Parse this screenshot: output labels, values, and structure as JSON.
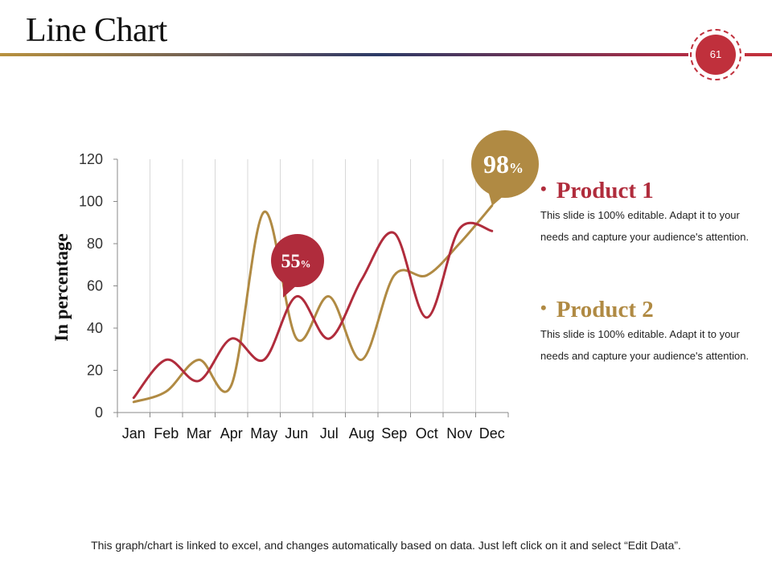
{
  "slide": {
    "title": "Line Chart",
    "page_number": "61",
    "footer": "This graph/chart is linked to excel, and changes automatically based on data. Just left click on it and select “Edit Data”."
  },
  "colors": {
    "product1": "#b02c3c",
    "product2": "#b08a43",
    "accent_red": "#c0303c",
    "grid": "#d8d8d8",
    "axis": "#888888"
  },
  "legend": [
    {
      "name": "Product 1",
      "description": "This slide is 100% editable. Adapt it to your needs and capture your audience's attention."
    },
    {
      "name": "Product 2",
      "description": "This slide is 100% editable. Adapt it to your needs and capture your audience's attention."
    }
  ],
  "chart_data": {
    "type": "line",
    "title": "",
    "xlabel": "",
    "ylabel": "In percentage",
    "ylim": [
      0,
      120
    ],
    "yticks": [
      0,
      20,
      40,
      60,
      80,
      100,
      120
    ],
    "grid": "vertical",
    "smooth": true,
    "categories": [
      "Jan",
      "Feb",
      "Mar",
      "Apr",
      "May",
      "Jun",
      "Jul",
      "Aug",
      "Sep",
      "Oct",
      "Nov",
      "Dec"
    ],
    "series": [
      {
        "name": "Product 1",
        "values": [
          7,
          25,
          15,
          35,
          25,
          55,
          35,
          63,
          85,
          45,
          87,
          86
        ]
      },
      {
        "name": "Product 2",
        "values": [
          5,
          10,
          25,
          13,
          95,
          35,
          55,
          25,
          65,
          65,
          80,
          98
        ]
      }
    ],
    "callouts": [
      {
        "series": "Product 1",
        "month": "Jun",
        "value": "55",
        "unit": "%"
      },
      {
        "series": "Product 2",
        "month": "Dec",
        "value": "98",
        "unit": "%"
      }
    ]
  }
}
